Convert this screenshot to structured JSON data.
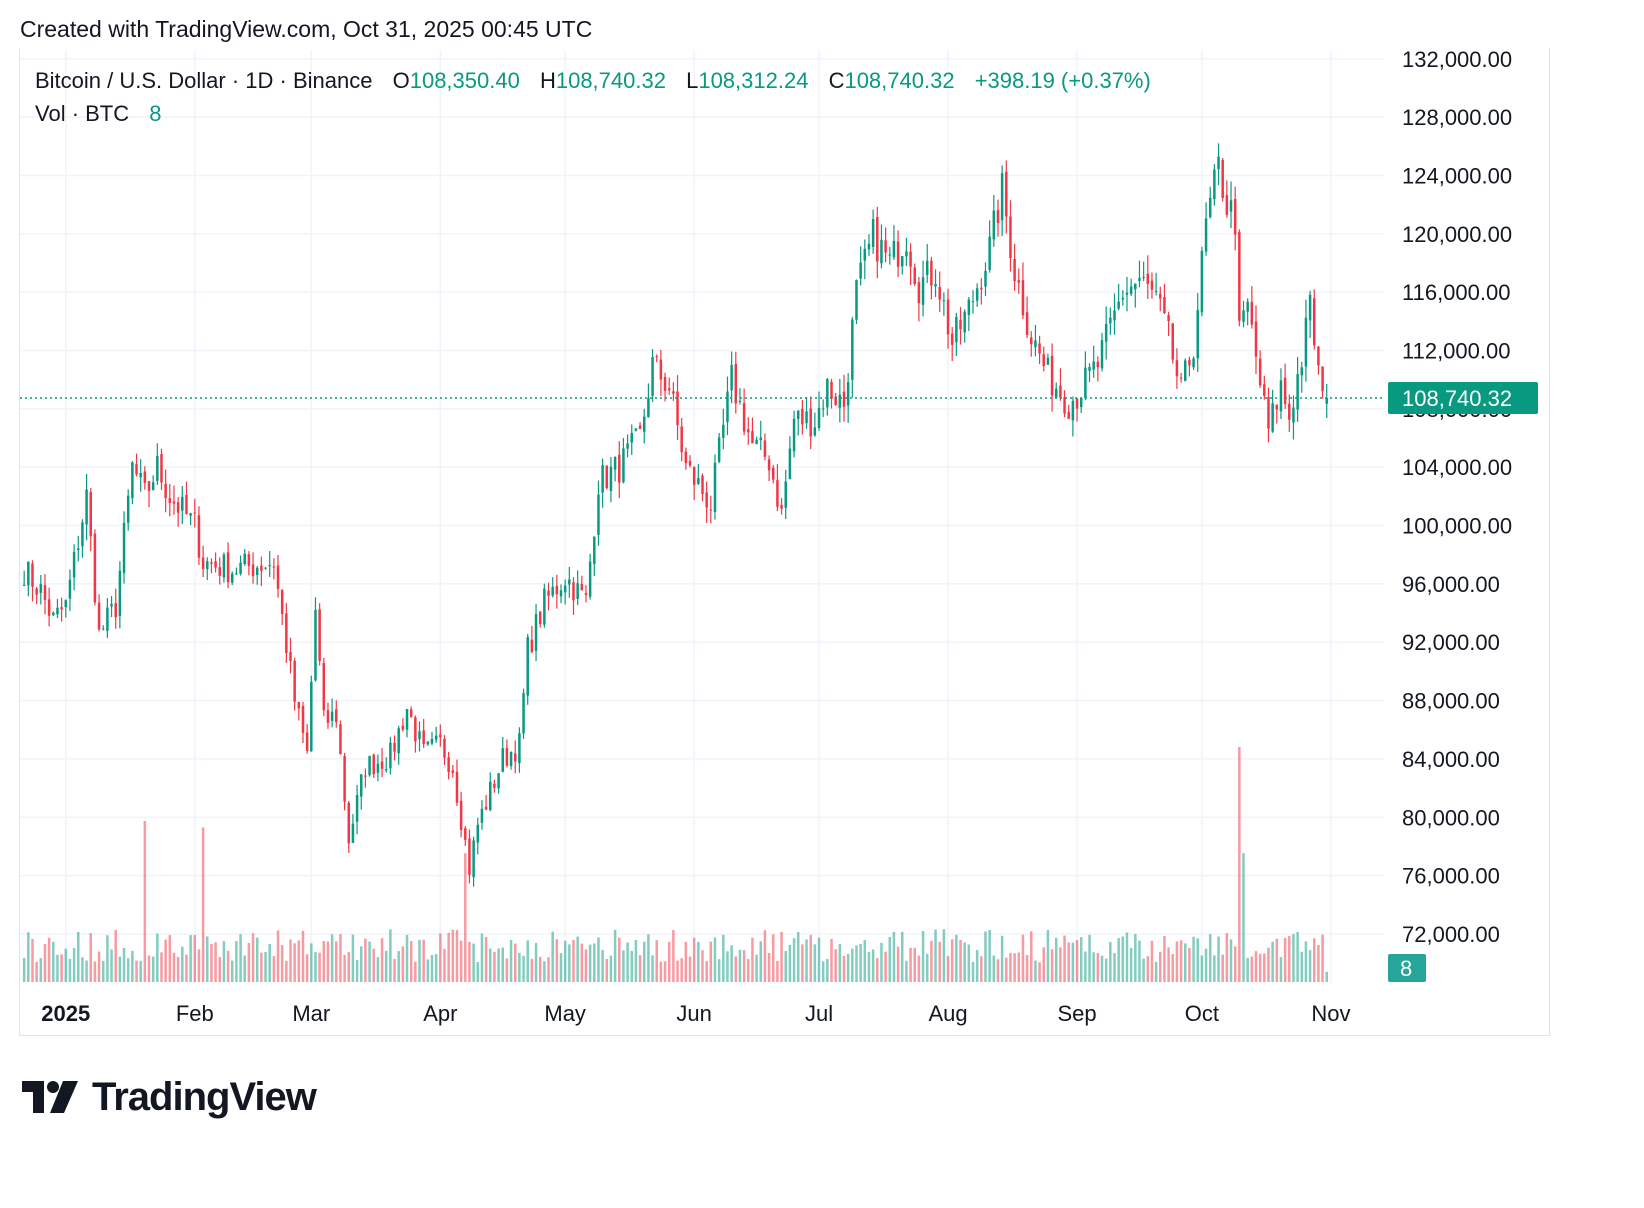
{
  "header": {
    "caption": "Created with TradingView.com, Oct 31, 2025 00:45 UTC"
  },
  "legend": {
    "symbol": "Bitcoin / U.S. Dollar · 1D · Binance",
    "open_label": "O",
    "open_value": "108,350.40",
    "high_label": "H",
    "high_value": "108,740.32",
    "low_label": "L",
    "low_value": "108,312.24",
    "close_label": "C",
    "close_value": "108,740.32",
    "change": "+398.19 (+0.37%)",
    "vol_label": "Vol · BTC",
    "vol_value": "8"
  },
  "footer": {
    "brand": "TradingView"
  },
  "colors": {
    "up": "#089981",
    "down": "#f23645",
    "grid": "#f0f3fa",
    "text": "#131722",
    "price_badge": "#089981"
  },
  "chart_data": {
    "type": "candlestick",
    "title": "Bitcoin / U.S. Dollar · 1D · Binance",
    "y_axis": {
      "ticks": [
        72000,
        76000,
        80000,
        84000,
        88000,
        92000,
        96000,
        100000,
        104000,
        108000,
        112000,
        116000,
        120000,
        124000,
        128000,
        132000
      ],
      "tick_labels": [
        "72,000.00",
        "76,000.00",
        "80,000.00",
        "84,000.00",
        "88,000.00",
        "92,000.00",
        "96,000.00",
        "100,000.00",
        "104,000.00",
        "108,000.00",
        "112,000.00",
        "116,000.00",
        "120,000.00",
        "124,000.00",
        "128,000.00",
        "132,000.00"
      ],
      "range": [
        68500,
        132600
      ]
    },
    "x_axis": {
      "labels": [
        {
          "date": "2025-01-01",
          "text": "2025",
          "bold": true
        },
        {
          "date": "2025-02-01",
          "text": "Feb"
        },
        {
          "date": "2025-03-01",
          "text": "Mar"
        },
        {
          "date": "2025-04-01",
          "text": "Apr"
        },
        {
          "date": "2025-05-01",
          "text": "May"
        },
        {
          "date": "2025-06-01",
          "text": "Jun"
        },
        {
          "date": "2025-07-01",
          "text": "Jul"
        },
        {
          "date": "2025-08-01",
          "text": "Aug"
        },
        {
          "date": "2025-09-01",
          "text": "Sep"
        },
        {
          "date": "2025-10-01",
          "text": "Oct"
        },
        {
          "date": "2025-11-01",
          "text": "Nov"
        }
      ],
      "range": [
        "2024-12-21",
        "2025-11-14"
      ]
    },
    "last_price": 108740.32,
    "last_price_label": "108,740.32",
    "last_volume": 8,
    "last_volume_label": "8",
    "price_path": [
      [
        "2024-12-22",
        97000
      ],
      [
        "2024-12-26",
        95500
      ],
      [
        "2024-12-29",
        93500
      ],
      [
        "2025-01-01",
        94500
      ],
      [
        "2025-01-06",
        102000
      ],
      [
        "2025-01-09",
        92500
      ],
      [
        "2025-01-13",
        94500
      ],
      [
        "2025-01-17",
        104000
      ],
      [
        "2025-01-20",
        102000
      ],
      [
        "2025-01-23",
        104000
      ],
      [
        "2025-01-26",
        102000
      ],
      [
        "2025-02-01",
        100000
      ],
      [
        "2025-02-03",
        97500
      ],
      [
        "2025-02-10",
        97000
      ],
      [
        "2025-02-20",
        97500
      ],
      [
        "2025-02-25",
        88000
      ],
      [
        "2025-02-28",
        84300
      ],
      [
        "2025-03-02",
        94200
      ],
      [
        "2025-03-04",
        86500
      ],
      [
        "2025-03-07",
        87000
      ],
      [
        "2025-03-10",
        78500
      ],
      [
        "2025-03-14",
        83500
      ],
      [
        "2025-03-20",
        84200
      ],
      [
        "2025-03-24",
        87500
      ],
      [
        "2025-03-28",
        84300
      ],
      [
        "2025-04-01",
        85000
      ],
      [
        "2025-04-04",
        83500
      ],
      [
        "2025-04-08",
        76500
      ],
      [
        "2025-04-10",
        79500
      ],
      [
        "2025-04-16",
        84000
      ],
      [
        "2025-04-20",
        85000
      ],
      [
        "2025-04-22",
        91500
      ],
      [
        "2025-04-26",
        94700
      ],
      [
        "2025-05-01",
        96500
      ],
      [
        "2025-05-06",
        94800
      ],
      [
        "2025-05-09",
        103000
      ],
      [
        "2025-05-14",
        104000
      ],
      [
        "2025-05-19",
        106000
      ],
      [
        "2025-05-22",
        111000
      ],
      [
        "2025-05-26",
        109500
      ],
      [
        "2025-05-30",
        104000
      ],
      [
        "2025-06-05",
        101500
      ],
      [
        "2025-06-10",
        110000
      ],
      [
        "2025-06-15",
        105500
      ],
      [
        "2025-06-19",
        104500
      ],
      [
        "2025-06-22",
        100800
      ],
      [
        "2025-06-25",
        107300
      ],
      [
        "2025-06-30",
        107200
      ],
      [
        "2025-07-03",
        109500
      ],
      [
        "2025-07-07",
        108300
      ],
      [
        "2025-07-10",
        116000
      ],
      [
        "2025-07-14",
        119800
      ],
      [
        "2025-07-18",
        118000
      ],
      [
        "2025-07-22",
        119900
      ],
      [
        "2025-07-25",
        116500
      ],
      [
        "2025-07-29",
        117500
      ],
      [
        "2025-08-02",
        112500
      ],
      [
        "2025-08-06",
        114800
      ],
      [
        "2025-08-11",
        119000
      ],
      [
        "2025-08-14",
        123000
      ],
      [
        "2025-08-17",
        117500
      ],
      [
        "2025-08-21",
        113000
      ],
      [
        "2025-08-25",
        110300
      ],
      [
        "2025-08-30",
        108500
      ],
      [
        "2025-09-01",
        109000
      ],
      [
        "2025-09-06",
        111000
      ],
      [
        "2025-09-12",
        116000
      ],
      [
        "2025-09-16",
        116800
      ],
      [
        "2025-09-20",
        115500
      ],
      [
        "2025-09-23",
        112800
      ],
      [
        "2025-09-26",
        109000
      ],
      [
        "2025-09-29",
        112500
      ],
      [
        "2025-10-02",
        120500
      ],
      [
        "2025-10-05",
        124500
      ],
      [
        "2025-10-07",
        122000
      ],
      [
        "2025-10-09",
        121000
      ],
      [
        "2025-10-10",
        113000
      ],
      [
        "2025-10-12",
        115000
      ],
      [
        "2025-10-16",
        108000
      ],
      [
        "2025-10-17",
        106500
      ],
      [
        "2025-10-20",
        109500
      ],
      [
        "2025-10-22",
        107500
      ],
      [
        "2025-10-25",
        111500
      ],
      [
        "2025-10-27",
        115000
      ],
      [
        "2025-10-30",
        108300
      ],
      [
        "2025-10-31",
        108740
      ]
    ],
    "volume_spikes": [
      [
        "2025-01-20",
        2.5
      ],
      [
        "2025-02-03",
        2.4
      ],
      [
        "2025-04-07",
        2.0
      ],
      [
        "2025-10-10",
        5.0
      ],
      [
        "2025-10-11",
        2.0
      ]
    ]
  }
}
